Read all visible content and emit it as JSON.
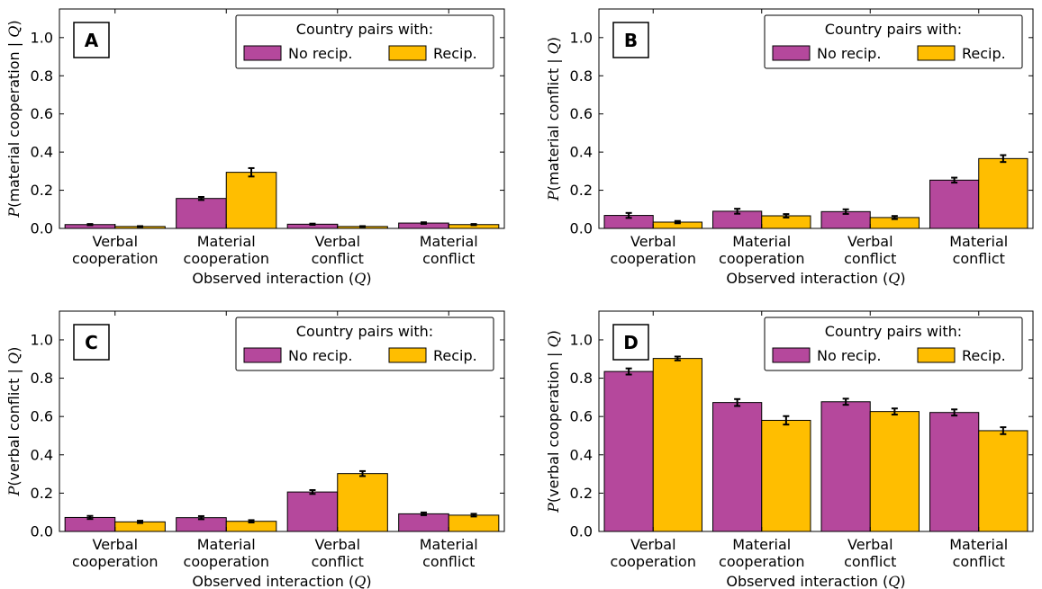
{
  "colors": {
    "no_recip": "#B5489C",
    "recip": "#FFBE00"
  },
  "legend": {
    "title": "Country pairs with:",
    "no_recip_label": "No recip.",
    "recip_label": "Recip."
  },
  "chart_data": [
    {
      "type": "bar",
      "panel": "A",
      "categories": [
        [
          "Verbal",
          "cooperation"
        ],
        [
          "Material",
          "cooperation"
        ],
        [
          "Verbal",
          "conflict"
        ],
        [
          "Material",
          "conflict"
        ]
      ],
      "series": [
        {
          "name": "No recip.",
          "values": [
            0.02,
            0.157,
            0.022,
            0.028
          ],
          "errors": [
            0.003,
            0.008,
            0.003,
            0.004
          ]
        },
        {
          "name": "Recip.",
          "values": [
            0.01,
            0.294,
            0.01,
            0.02
          ],
          "errors": [
            0.002,
            0.022,
            0.002,
            0.003
          ]
        }
      ],
      "xlabel_pre": "Observed interaction (",
      "xlabel_var": "Q",
      "xlabel_post": ")",
      "ylabel_pre": "(material cooperation | ",
      "ylabel_var": "Q",
      "ylabel_post": ")",
      "ylim": [
        0,
        1.15
      ],
      "yticks": [
        "0.0",
        "0.2",
        "0.4",
        "0.6",
        "0.8",
        "1.0"
      ],
      "legend_position": "top-right"
    },
    {
      "type": "bar",
      "panel": "B",
      "categories": [
        [
          "Verbal",
          "cooperation"
        ],
        [
          "Material",
          "cooperation"
        ],
        [
          "Verbal",
          "conflict"
        ],
        [
          "Material",
          "conflict"
        ]
      ],
      "series": [
        {
          "name": "No recip.",
          "values": [
            0.068,
            0.09,
            0.088,
            0.253
          ],
          "errors": [
            0.013,
            0.013,
            0.012,
            0.013
          ]
        },
        {
          "name": "Recip.",
          "values": [
            0.033,
            0.066,
            0.057,
            0.366
          ],
          "errors": [
            0.006,
            0.009,
            0.008,
            0.018
          ]
        }
      ],
      "xlabel_pre": "Observed interaction (",
      "xlabel_var": "Q",
      "xlabel_post": ")",
      "ylabel_pre": "(material conflict | ",
      "ylabel_var": "Q",
      "ylabel_post": ")",
      "ylim": [
        0,
        1.15
      ],
      "yticks": [
        "0.0",
        "0.2",
        "0.4",
        "0.6",
        "0.8",
        "1.0"
      ],
      "legend_position": "top-right"
    },
    {
      "type": "bar",
      "panel": "C",
      "categories": [
        [
          "Verbal",
          "cooperation"
        ],
        [
          "Material",
          "cooperation"
        ],
        [
          "Verbal",
          "conflict"
        ],
        [
          "Material",
          "conflict"
        ]
      ],
      "series": [
        {
          "name": "No recip.",
          "values": [
            0.073,
            0.072,
            0.206,
            0.092
          ],
          "errors": [
            0.008,
            0.008,
            0.01,
            0.007
          ]
        },
        {
          "name": "Recip.",
          "values": [
            0.05,
            0.053,
            0.302,
            0.085
          ],
          "errors": [
            0.006,
            0.006,
            0.013,
            0.007
          ]
        }
      ],
      "xlabel_pre": "Observed interaction (",
      "xlabel_var": "Q",
      "xlabel_post": ")",
      "ylabel_pre": "(verbal conflict | ",
      "ylabel_var": "Q",
      "ylabel_post": ")",
      "ylim": [
        0,
        1.15
      ],
      "yticks": [
        "0.0",
        "0.2",
        "0.4",
        "0.6",
        "0.8",
        "1.0"
      ],
      "legend_position": "top-right"
    },
    {
      "type": "bar",
      "panel": "D",
      "categories": [
        [
          "Verbal",
          "cooperation"
        ],
        [
          "Material",
          "cooperation"
        ],
        [
          "Verbal",
          "conflict"
        ],
        [
          "Material",
          "conflict"
        ]
      ],
      "series": [
        {
          "name": "No recip.",
          "values": [
            0.835,
            0.673,
            0.677,
            0.621
          ],
          "errors": [
            0.016,
            0.018,
            0.016,
            0.016
          ]
        },
        {
          "name": "Recip.",
          "values": [
            0.903,
            0.58,
            0.626,
            0.526
          ],
          "errors": [
            0.01,
            0.022,
            0.016,
            0.018
          ]
        }
      ],
      "xlabel_pre": "Observed interaction (",
      "xlabel_var": "Q",
      "xlabel_post": ")",
      "ylabel_pre": "(verbal cooperation | ",
      "ylabel_var": "Q",
      "ylabel_post": ")",
      "ylim": [
        0,
        1.15
      ],
      "yticks": [
        "0.0",
        "0.2",
        "0.4",
        "0.6",
        "0.8",
        "1.0"
      ],
      "legend_position": "top-right"
    }
  ]
}
